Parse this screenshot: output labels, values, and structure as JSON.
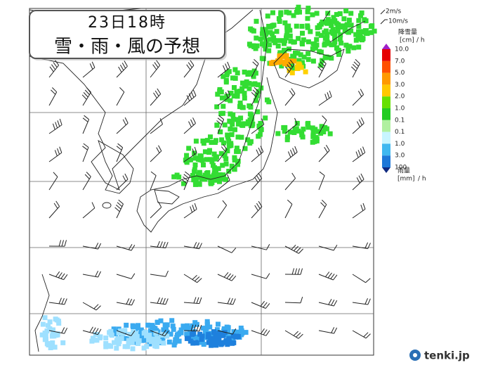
{
  "title": {
    "time": "23日18時",
    "subtitle": "雪・雨・風の予想"
  },
  "legend": {
    "wind": [
      "2m/s",
      "10m/s"
    ],
    "snow": {
      "label": "降雪量",
      "unit": "[cm]",
      "per": "/ h"
    },
    "levels": [
      "10.0",
      "7.0",
      "5.0",
      "3.0",
      "2.0",
      "1.0",
      "0.1",
      "0.1",
      "1.0",
      "3.0",
      "100"
    ],
    "rain": {
      "label": "雨量",
      "unit": "[mm]",
      "per": "/ h"
    }
  },
  "logo": "tenki.jp"
}
